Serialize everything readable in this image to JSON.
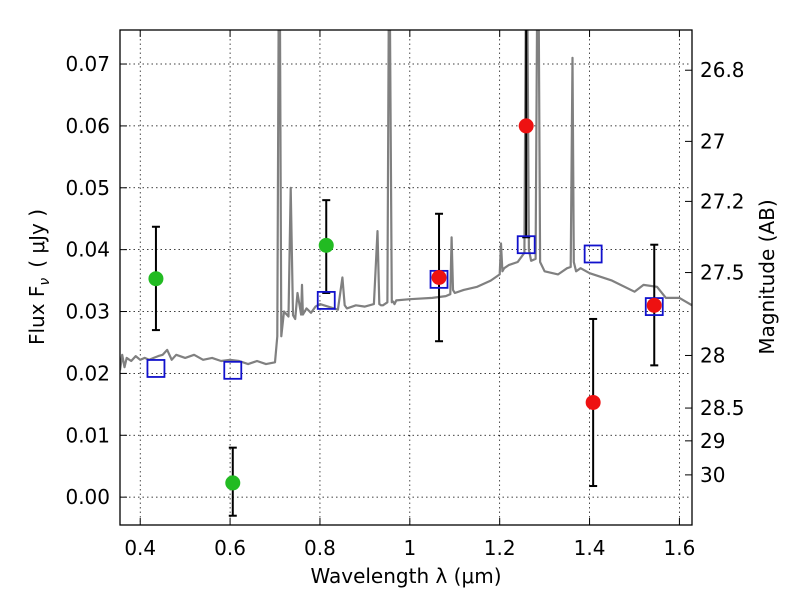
{
  "chart_data": {
    "type": "scatter",
    "xlabel": "Wavelength  λ (μm)",
    "ylabel": "Flux  F",
    "ylabel_sub": "ν",
    "ylabel_units": "( μJy )",
    "right_ylabel": "Magnitude (AB)",
    "xlim": [
      0.355,
      1.628
    ],
    "ylim": [
      -0.0045,
      0.0755
    ],
    "grid": true,
    "x_ticks": [
      {
        "value": 0.4,
        "label": "0.4"
      },
      {
        "value": 0.6,
        "label": "0.6"
      },
      {
        "value": 0.8,
        "label": "0.8"
      },
      {
        "value": 1.0,
        "label": "1"
      },
      {
        "value": 1.2,
        "label": "1.2"
      },
      {
        "value": 1.4,
        "label": "1.4"
      },
      {
        "value": 1.6,
        "label": "1.6"
      }
    ],
    "y_ticks": [
      {
        "value": 0.0,
        "label": "0.00"
      },
      {
        "value": 0.01,
        "label": "0.01"
      },
      {
        "value": 0.02,
        "label": "0.02"
      },
      {
        "value": 0.03,
        "label": "0.03"
      },
      {
        "value": 0.04,
        "label": "0.04"
      },
      {
        "value": 0.05,
        "label": "0.05"
      },
      {
        "value": 0.06,
        "label": "0.06"
      },
      {
        "value": 0.07,
        "label": "0.07"
      }
    ],
    "right_ticks": [
      {
        "label": "26.8",
        "flux": 0.069
      },
      {
        "label": "27",
        "flux": 0.0575
      },
      {
        "label": "27.2",
        "flux": 0.0478
      },
      {
        "label": "27.5",
        "flux": 0.0363
      },
      {
        "label": "28",
        "flux": 0.0229
      },
      {
        "label": "28.5",
        "flux": 0.0144
      },
      {
        "label": "29",
        "flux": 0.0091
      },
      {
        "label": "30",
        "flux": 0.0036
      }
    ],
    "colors": {
      "model": "#808080",
      "green": "#22bb22",
      "red": "#ee1111",
      "square": "#1111cc",
      "errorbar": "#000000"
    },
    "model_spectrum": {
      "x": [
        0.355,
        0.36,
        0.365,
        0.37,
        0.38,
        0.39,
        0.4,
        0.41,
        0.42,
        0.43,
        0.44,
        0.45,
        0.46,
        0.47,
        0.48,
        0.5,
        0.52,
        0.54,
        0.56,
        0.58,
        0.6,
        0.62,
        0.64,
        0.66,
        0.68,
        0.7,
        0.705,
        0.708,
        0.711,
        0.714,
        0.72,
        0.73,
        0.735,
        0.74,
        0.745,
        0.75,
        0.758,
        0.76,
        0.762,
        0.77,
        0.78,
        0.79,
        0.8,
        0.84,
        0.85,
        0.855,
        0.86,
        0.88,
        0.9,
        0.92,
        0.928,
        0.932,
        0.936,
        0.94,
        0.95,
        0.953,
        0.956,
        0.96,
        0.963,
        0.966,
        0.97,
        1.0,
        1.05,
        1.08,
        1.09,
        1.093,
        1.096,
        1.1,
        1.12,
        1.15,
        1.18,
        1.2,
        1.203,
        1.206,
        1.21,
        1.22,
        1.24,
        1.255,
        1.258,
        1.262,
        1.265,
        1.27,
        1.28,
        1.283,
        1.287,
        1.29,
        1.3,
        1.33,
        1.35,
        1.358,
        1.362,
        1.365,
        1.37,
        1.38,
        1.4,
        1.45,
        1.5,
        1.52,
        1.55,
        1.57,
        1.6,
        1.628
      ],
      "y": [
        0.0205,
        0.023,
        0.021,
        0.0225,
        0.022,
        0.0228,
        0.0222,
        0.0225,
        0.0222,
        0.0225,
        0.0228,
        0.023,
        0.0238,
        0.0222,
        0.023,
        0.0225,
        0.023,
        0.0222,
        0.0225,
        0.022,
        0.0222,
        0.022,
        0.0215,
        0.022,
        0.0215,
        0.0218,
        0.026,
        0.076,
        0.076,
        0.026,
        0.03,
        0.0292,
        0.05,
        0.0294,
        0.0288,
        0.033,
        0.0295,
        0.0343,
        0.0295,
        0.0305,
        0.0298,
        0.0308,
        0.0312,
        0.0303,
        0.0355,
        0.031,
        0.0305,
        0.031,
        0.0308,
        0.0312,
        0.043,
        0.0312,
        0.031,
        0.031,
        0.0315,
        0.076,
        0.076,
        0.0315,
        0.0316,
        0.0312,
        0.0318,
        0.032,
        0.0322,
        0.0325,
        0.0328,
        0.042,
        0.0335,
        0.033,
        0.0335,
        0.034,
        0.035,
        0.036,
        0.041,
        0.0365,
        0.037,
        0.0375,
        0.038,
        0.0395,
        0.076,
        0.076,
        0.04,
        0.0382,
        0.0385,
        0.076,
        0.076,
        0.038,
        0.0365,
        0.036,
        0.037,
        0.0372,
        0.071,
        0.038,
        0.0365,
        0.037,
        0.0362,
        0.035,
        0.0332,
        0.0343,
        0.034,
        0.0322,
        0.0322,
        0.031
      ]
    },
    "green_points": [
      {
        "x": 0.435,
        "y": 0.0353,
        "err_low": 0.027,
        "err_high": 0.0437
      },
      {
        "x": 0.606,
        "y": 0.0023,
        "err_low": -0.003,
        "err_high": 0.008
      },
      {
        "x": 0.814,
        "y": 0.0407,
        "err_low": 0.033,
        "err_high": 0.048
      }
    ],
    "red_points": [
      {
        "x": 1.065,
        "y": 0.0355,
        "err_low": 0.0252,
        "err_high": 0.0458
      },
      {
        "x": 1.259,
        "y": 0.06,
        "err_low": 0.042,
        "err_high": 0.076
      },
      {
        "x": 1.408,
        "y": 0.0153,
        "err_low": 0.0018,
        "err_high": 0.0288
      },
      {
        "x": 1.544,
        "y": 0.031,
        "err_low": 0.0213,
        "err_high": 0.0408
      }
    ],
    "square_points": [
      {
        "x": 0.435,
        "y": 0.0208
      },
      {
        "x": 0.606,
        "y": 0.0205
      },
      {
        "x": 0.814,
        "y": 0.0318
      },
      {
        "x": 1.065,
        "y": 0.0352
      },
      {
        "x": 1.259,
        "y": 0.0408
      },
      {
        "x": 1.408,
        "y": 0.0393
      },
      {
        "x": 1.544,
        "y": 0.0308
      }
    ]
  }
}
